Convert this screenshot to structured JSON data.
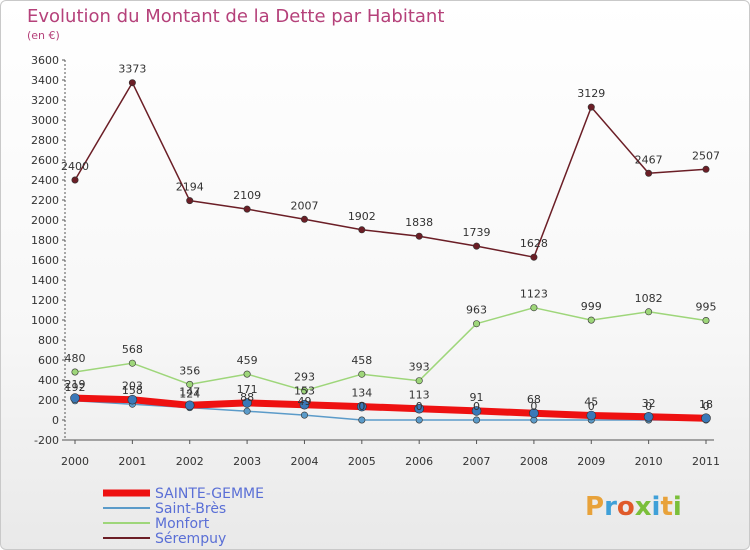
{
  "header": {
    "title": "Evolution du Montant de la Dette par Habitant",
    "subtitle": "(en €)"
  },
  "logo": {
    "text": "Proxiti",
    "colors": [
      "#e8a23a",
      "#3fa0d8",
      "#e05a2a",
      "#7bbf3a",
      "#3fa0d8",
      "#e8a23a",
      "#7bbf3a"
    ]
  },
  "chart_data": {
    "type": "line",
    "categories": [
      "2000",
      "2001",
      "2002",
      "2003",
      "2004",
      "2005",
      "2006",
      "2007",
      "2008",
      "2009",
      "2010",
      "2011"
    ],
    "ylim": [
      -200,
      3600
    ],
    "yticks": [
      -200,
      0,
      200,
      400,
      600,
      800,
      1000,
      1200,
      1400,
      1600,
      1800,
      2000,
      2200,
      2400,
      2600,
      2800,
      3000,
      3200,
      3400,
      3600
    ],
    "grid": false,
    "legend_position": "bottom-left",
    "series": [
      {
        "name": "Sérempuy",
        "color": "#6b1e26",
        "width": 1.5,
        "values": [
          2400,
          3373,
          2194,
          2109,
          2007,
          1902,
          1838,
          1739,
          1628,
          3129,
          2467,
          2507
        ]
      },
      {
        "name": "Monfort",
        "color": "#9ed67a",
        "width": 1.5,
        "values": [
          480,
          568,
          356,
          459,
          293,
          458,
          393,
          963,
          1123,
          999,
          1082,
          995
        ]
      },
      {
        "name": "Saint-Brès",
        "color": "#5b9bc9",
        "width": 1.5,
        "values": [
          192,
          158,
          124,
          88,
          49,
          0,
          0,
          0,
          0,
          0,
          0,
          0
        ]
      },
      {
        "name": "SAINTE-GEMME",
        "color": "#ee1111",
        "width": 7,
        "values": [
          219,
          203,
          147,
          171,
          153,
          134,
          113,
          91,
          68,
          45,
          32,
          18
        ]
      }
    ],
    "data_labels": [
      {
        "series": 0,
        "labels": [
          "2400",
          "3373",
          "2194",
          "2109",
          "2007",
          "1902",
          "1838",
          "1739",
          "1628",
          "3129",
          "2467",
          "2507"
        ]
      },
      {
        "series": 1,
        "labels": [
          "480",
          "568",
          "356",
          "459",
          "293",
          "458",
          "393",
          "963",
          "1123",
          "999",
          "1082",
          "995"
        ]
      },
      {
        "series": 2,
        "labels": [
          "192",
          "158",
          "124",
          "88",
          "49",
          "0",
          "0",
          "0",
          "0",
          "0",
          "0",
          "0"
        ]
      },
      {
        "series": 3,
        "labels": [
          "219",
          "203",
          "147",
          "171",
          "153",
          "134",
          "113",
          "91",
          "68",
          "45",
          "32",
          "18"
        ]
      }
    ]
  },
  "legend": [
    {
      "label": "SAINTE-GEMME",
      "color": "#ee1111",
      "width": 7
    },
    {
      "label": "Saint-Brès",
      "color": "#5b9bc9",
      "width": 2
    },
    {
      "label": "Monfort",
      "color": "#9ed67a",
      "width": 2
    },
    {
      "label": "Sérempuy",
      "color": "#6b1e26",
      "width": 2
    }
  ]
}
